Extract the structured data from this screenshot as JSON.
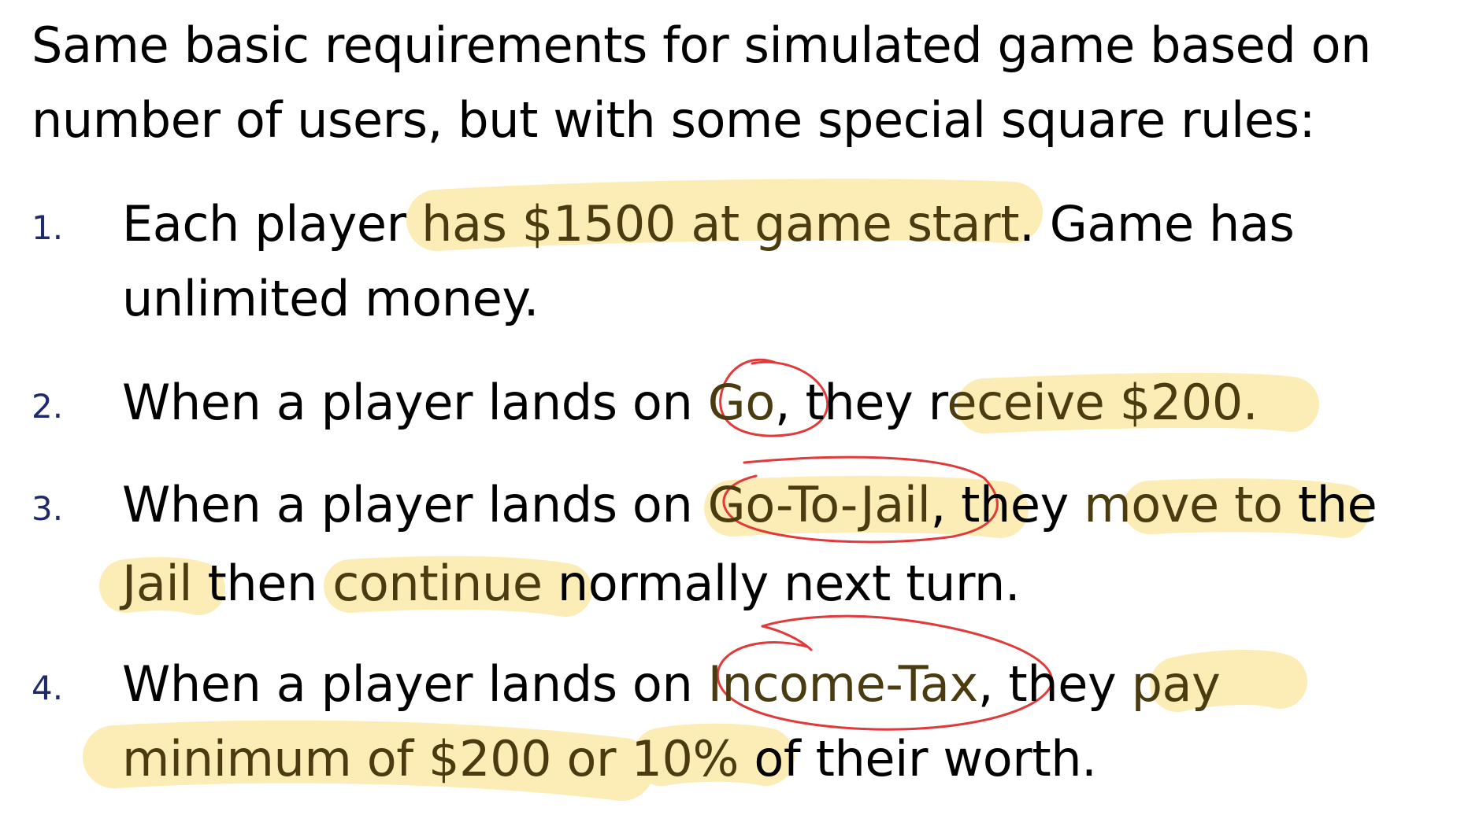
{
  "intro": {
    "line1": "Same basic requirements for simulated game based on",
    "line2": "number of users, but with some special square rules:"
  },
  "rules": [
    {
      "number": "1.",
      "line1": {
        "t1": "Each player ",
        "h1": "has $1500 at game start",
        "t2": ".  Game has"
      },
      "line2": {
        "t1": "unlimited money."
      }
    },
    {
      "number": "2.",
      "line1": {
        "t1": "When a player lands on ",
        "h1": "Go",
        "t2": ", they r",
        "h2": "eceive $200",
        "t3": "."
      }
    },
    {
      "number": "3.",
      "line1": {
        "t1": "When a player lands on ",
        "h1": "Go-To-Jail",
        "t2": ", they ",
        "h2": "move to",
        "t3": " the"
      },
      "line2": {
        "h1": "Jail",
        "t1": " then ",
        "h2": "continue",
        "t2": " normally next turn."
      }
    },
    {
      "number": "4.",
      "line1": {
        "t1": "When a player lands on ",
        "h1": "Income-Tax",
        "t2": ", they ",
        "h2": "pay"
      },
      "line2": {
        "h1": "minimum of $200 or",
        "t1": " ",
        "h2": "10%",
        "t2": " of their worth."
      }
    }
  ],
  "colors": {
    "highlight": "#fce9a9",
    "annotation_ink": "#e03a3a",
    "list_number": "#1f2a6b",
    "highlighted_text": "#4a3c10"
  }
}
